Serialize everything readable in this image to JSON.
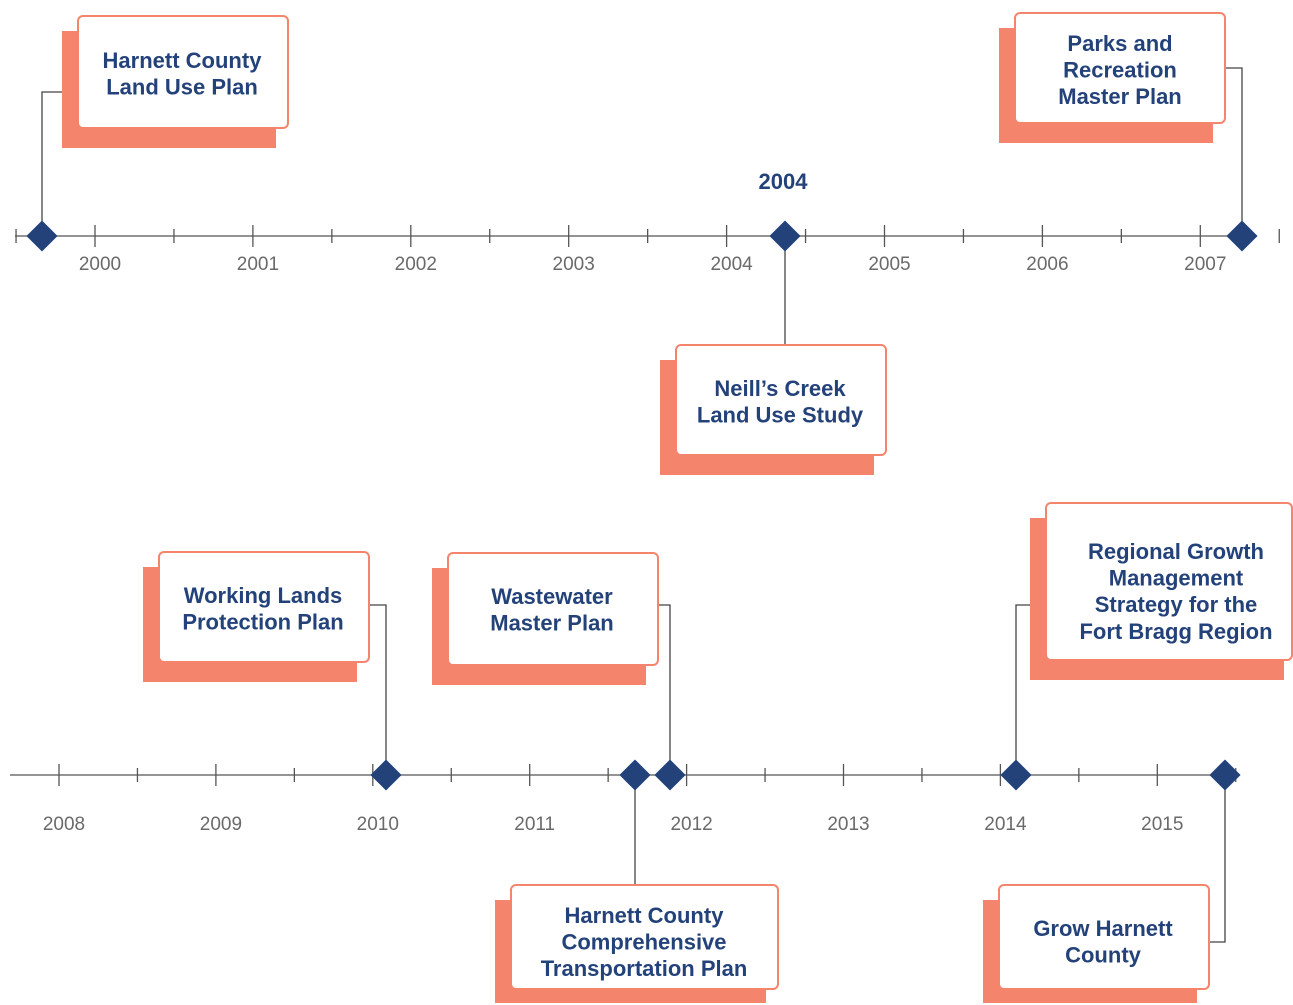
{
  "timelines": [
    {
      "years": [
        "2000",
        "2001",
        "2002",
        "2003",
        "2004",
        "2005",
        "2006",
        "2007"
      ],
      "highlight": "2004",
      "events": [
        {
          "lines": [
            "Harnett County",
            "Land Use Plan"
          ]
        },
        {
          "lines": [
            "Parks and",
            "Recreation",
            "Master Plan"
          ]
        },
        {
          "lines": [
            "Neill’s Creek",
            "Land Use Study"
          ]
        }
      ]
    },
    {
      "years": [
        "2008",
        "2009",
        "2010",
        "2011",
        "2012",
        "2013",
        "2014",
        "2015"
      ],
      "events": [
        {
          "lines": [
            "Working Lands",
            "Protection Plan"
          ]
        },
        {
          "lines": [
            "Wastewater",
            "Master Plan"
          ]
        },
        {
          "lines": [
            "Harnett County",
            "Comprehensive",
            "Transportation Plan"
          ]
        },
        {
          "lines": [
            "Regional Growth",
            "Management",
            "Strategy for the",
            "Fort Bragg Region"
          ]
        },
        {
          "lines": [
            "Grow Harnett",
            "County"
          ]
        }
      ]
    }
  ]
}
